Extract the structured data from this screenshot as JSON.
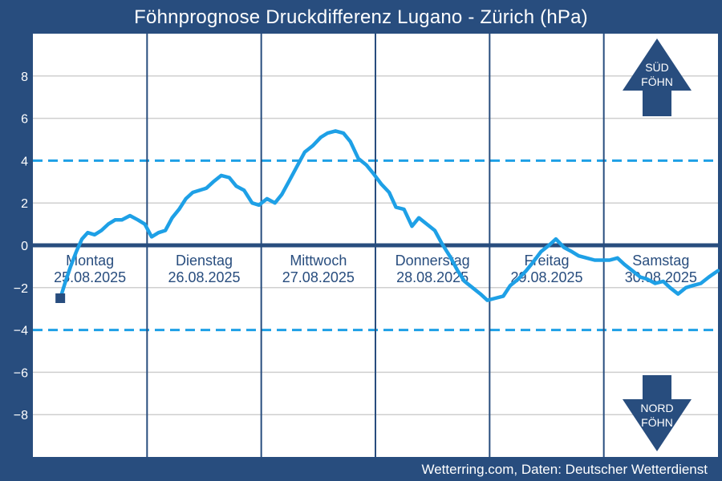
{
  "title": "Föhnprognose Druckdifferenz Lugano - Zürich (hPa)",
  "source": "Wetterring.com, Daten: Deutscher Wetterdienst",
  "colors": {
    "background": "#284d7e",
    "plot_bg": "#ffffff",
    "line": "#1ea0e6",
    "threshold": "#1ea0e6",
    "zero_line": "#284d7e",
    "grid": "#cfcfcf",
    "day_divider": "#284d7e",
    "arrow": "#284d7e"
  },
  "arrows": {
    "south": {
      "icon": "arrow-up-icon",
      "line1": "SÜD",
      "line2": "FÖHN"
    },
    "north": {
      "icon": "arrow-down-icon",
      "line1": "NORD",
      "line2": "FÖHN"
    }
  },
  "chart_data": {
    "type": "line",
    "title": "Föhnprognose Druckdifferenz Lugano - Zürich (hPa)",
    "xlabel": "",
    "ylabel": "",
    "ylim": [
      -10,
      10
    ],
    "xlim": [
      0,
      6
    ],
    "yticks": [
      8,
      6,
      4,
      2,
      0,
      -2,
      -4,
      -6,
      -8
    ],
    "ytick_labels": [
      "8",
      "6",
      "4",
      "2",
      "0",
      "−2",
      "−4",
      "−6",
      "−8"
    ],
    "grid": true,
    "threshold_lines": [
      4,
      -4
    ],
    "zero_line": 0,
    "days": [
      {
        "name": "Montag",
        "date": "25.08.2025"
      },
      {
        "name": "Dienstag",
        "date": "26.08.2025"
      },
      {
        "name": "Mittwoch",
        "date": "27.08.2025"
      },
      {
        "name": "Donnerstag",
        "date": "28.08.2025"
      },
      {
        "name": "Freitag",
        "date": "29.08.2025"
      },
      {
        "name": "Samstag",
        "date": "30.08.2025"
      }
    ],
    "series": [
      {
        "x": [
          0.24,
          0.28,
          0.33,
          0.38,
          0.43,
          0.48,
          0.54,
          0.6,
          0.66,
          0.72,
          0.78,
          0.85,
          0.92,
          0.98,
          1.04,
          1.1,
          1.16,
          1.22,
          1.28,
          1.34,
          1.4,
          1.46,
          1.52,
          1.58,
          1.65,
          1.72,
          1.78,
          1.85,
          1.92,
          1.98,
          2.05,
          2.12,
          2.18,
          2.25,
          2.32,
          2.38,
          2.45,
          2.52,
          2.58,
          2.65,
          2.72,
          2.78,
          2.85,
          2.92,
          2.98,
          3.05,
          3.12,
          3.18,
          3.25,
          3.32,
          3.38,
          3.45,
          3.52,
          3.58,
          3.65,
          3.72,
          3.78,
          3.85,
          3.92,
          3.98,
          4.05,
          4.12,
          4.18,
          4.25,
          4.32,
          4.38,
          4.45,
          4.52,
          4.58,
          4.65,
          4.72,
          4.78,
          4.85,
          4.92,
          4.98,
          5.05,
          5.12,
          5.18,
          5.25,
          5.32,
          5.38,
          5.45,
          5.52,
          5.58,
          5.65,
          5.72,
          5.78,
          5.85,
          5.92,
          6.0
        ],
        "values": [
          -2.5,
          -1.8,
          -1.0,
          -0.3,
          0.3,
          0.6,
          0.5,
          0.7,
          1.0,
          1.2,
          1.2,
          1.4,
          1.2,
          1.0,
          0.4,
          0.6,
          0.7,
          1.3,
          1.7,
          2.2,
          2.5,
          2.6,
          2.7,
          3.0,
          3.3,
          3.2,
          2.8,
          2.6,
          2.0,
          1.9,
          2.2,
          2.0,
          2.4,
          3.1,
          3.8,
          4.4,
          4.7,
          5.1,
          5.3,
          5.4,
          5.3,
          4.9,
          4.1,
          3.8,
          3.4,
          2.9,
          2.5,
          1.8,
          1.7,
          0.9,
          1.3,
          1.0,
          0.7,
          0.1,
          -0.5,
          -1.2,
          -1.7,
          -2.0,
          -2.3,
          -2.6,
          -2.5,
          -2.4,
          -1.9,
          -1.6,
          -1.2,
          -0.8,
          -0.3,
          0.0,
          0.3,
          -0.1,
          -0.3,
          -0.5,
          -0.6,
          -0.7,
          -0.7,
          -0.7,
          -0.6,
          -0.9,
          -1.2,
          -1.5,
          -1.6,
          -1.8,
          -1.7,
          -2.0,
          -2.3,
          -2.0,
          -1.9,
          -1.8,
          -1.5,
          -1.2
        ]
      }
    ]
  }
}
